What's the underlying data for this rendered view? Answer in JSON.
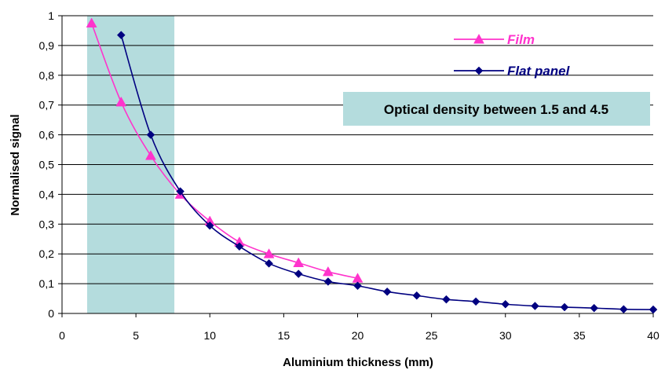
{
  "chart_data": {
    "type": "line",
    "title": "",
    "xlabel": "Aluminium thickness (mm)",
    "ylabel": "Normalised signal",
    "xlim": [
      0,
      40
    ],
    "ylim": [
      0,
      1
    ],
    "x_ticks": [
      "0",
      "5",
      "10",
      "15",
      "20",
      "25",
      "30",
      "35",
      "40"
    ],
    "y_ticks": [
      "0",
      "0,1",
      "0,2",
      "0,3",
      "0,4",
      "0,5",
      "0,6",
      "0,7",
      "0,8",
      "0,9",
      "1"
    ],
    "x_tick_values": [
      0,
      5,
      10,
      15,
      20,
      25,
      30,
      35,
      40
    ],
    "y_tick_values": [
      0,
      0.1,
      0.2,
      0.3,
      0.4,
      0.5,
      0.6,
      0.7,
      0.8,
      0.9,
      1
    ],
    "grid": "horizontal",
    "legend_position": "top-right",
    "shaded_region": {
      "x_start": 1.7,
      "x_end": 7.6,
      "color": "#b4dcdd"
    },
    "annotation": {
      "text": "Optical density between 1.5 and 4.5",
      "background": "#b4dcdd"
    },
    "series": [
      {
        "name": "Film",
        "color": "#ff33cc",
        "marker": "triangle",
        "x": [
          2,
          4,
          6,
          8,
          10,
          12,
          14,
          16,
          18,
          20
        ],
        "y": [
          0.975,
          0.71,
          0.53,
          0.4,
          0.31,
          0.24,
          0.2,
          0.17,
          0.14,
          0.118
        ]
      },
      {
        "name": "Flat panel",
        "color": "#000080",
        "marker": "diamond",
        "x": [
          4,
          6,
          8,
          10,
          12,
          14,
          16,
          18,
          20,
          22,
          24,
          26,
          28,
          30,
          32,
          34,
          36,
          38,
          40
        ],
        "y": [
          0.935,
          0.6,
          0.41,
          0.295,
          0.225,
          0.168,
          0.133,
          0.107,
          0.093,
          0.073,
          0.06,
          0.047,
          0.04,
          0.031,
          0.025,
          0.021,
          0.018,
          0.014,
          0.013
        ]
      }
    ]
  }
}
